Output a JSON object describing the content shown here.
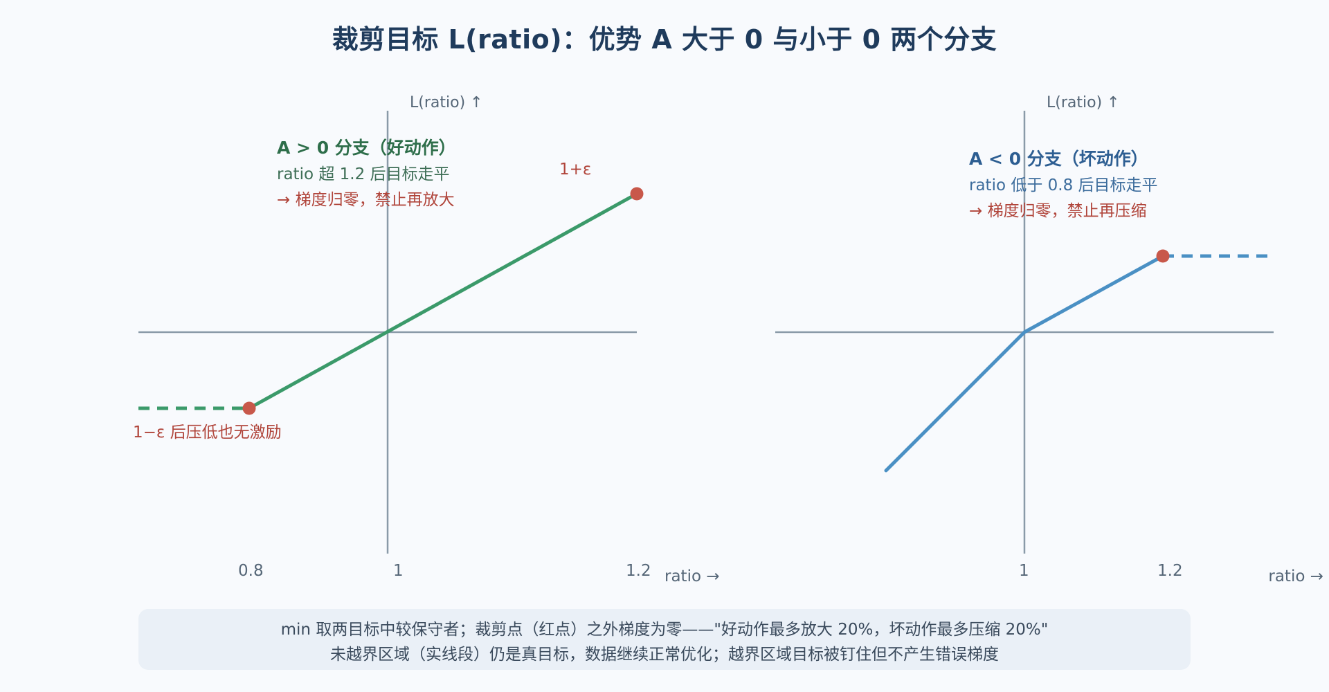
{
  "title": "裁剪目标 L(ratio)：优势 A 大于 0 与小于 0 两个分支",
  "colors": {
    "green": "#3b9a6a",
    "blue": "#4a90c4",
    "red_dot": "#c8584a",
    "axis": "#8a9aa8",
    "head_green": "#2e6e4a",
    "head_blue": "#2d5e92",
    "warn": "#b0443a",
    "note_green": "#3e6e56",
    "note_blue": "#3c6c9c"
  },
  "left_panel": {
    "y_axis_label": "L(ratio) ↑",
    "x_axis_label": "ratio →",
    "ticks": [
      "0.8",
      "1",
      "1.2"
    ],
    "upper_label": "1+ε",
    "lower_label": "1−ε 后压低也无激励",
    "note_title": "A > 0 分支（好动作）",
    "note_line1": "ratio 超 1.2 后目标走平",
    "note_line2": "→ 梯度归零，禁止再放大"
  },
  "right_panel": {
    "y_axis_label": "L(ratio) ↑",
    "x_axis_label": "ratio →",
    "ticks": [
      "1",
      "1.2"
    ],
    "note_title": "A < 0 分支（坏动作）",
    "note_line1": "ratio 低于 0.8 后目标走平",
    "note_line2": "→ 梯度归零，禁止再压缩"
  },
  "footer": {
    "line1": "min 取两目标中较保守者；裁剪点（红点）之外梯度为零——\"好动作最多放大 20%，坏动作最多压缩 20%\"",
    "line2": "未越界区域（实线段）仍是真目标，数据继续正常优化；越界区域目标被钉住但不产生错误梯度"
  }
}
